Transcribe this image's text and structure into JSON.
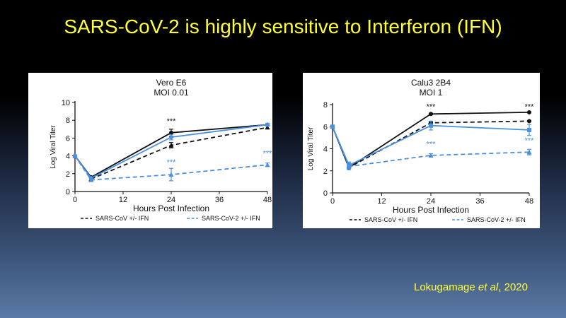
{
  "slide": {
    "title": "SARS-CoV-2 is highly sensitive to Interferon (IFN)",
    "citation": {
      "authors": "Lokugamage",
      "etal": "et al",
      "year": ", 2020"
    },
    "colors": {
      "title": "#ffff33",
      "black_series": "#111111",
      "blue_series": "#4a90e2"
    }
  },
  "chart_data": [
    {
      "type": "line",
      "title": "Vero E6",
      "subtitle": "MOI 0.01",
      "xlabel": "Hours Post Infection",
      "ylabel": "Log Viral Titer",
      "xlim": [
        0,
        48
      ],
      "ylim": [
        0,
        10
      ],
      "xticks": [
        0,
        12,
        24,
        36,
        48
      ],
      "yticks": [
        0,
        2,
        4,
        6,
        8,
        10
      ],
      "grid": false,
      "legend_position": "bottom",
      "legend": [
        "SARS-CoV +/- IFN",
        "SARS-CoV-2 +/- IFN"
      ],
      "series": [
        {
          "group": "SARS-CoV",
          "treated": false,
          "color": "#111111",
          "dashed": false,
          "marker": "circle",
          "x": [
            0,
            4,
            24,
            48
          ],
          "y": [
            4,
            1.6,
            6.6,
            7.5
          ],
          "err": [
            0,
            0,
            0.4,
            0.15
          ]
        },
        {
          "group": "SARS-CoV",
          "treated": true,
          "color": "#111111",
          "dashed": true,
          "marker": "triangle",
          "x": [
            0,
            4,
            24,
            48
          ],
          "y": [
            4,
            1.4,
            5.2,
            7.2
          ],
          "err": [
            0,
            0,
            0.3,
            0.15
          ]
        },
        {
          "group": "SARS-CoV-2",
          "treated": false,
          "color": "#4a90e2",
          "dashed": false,
          "marker": "circle",
          "x": [
            0,
            4,
            24,
            48
          ],
          "y": [
            4,
            1.5,
            6.1,
            7.5
          ],
          "err": [
            0,
            0,
            0.3,
            0.15
          ]
        },
        {
          "group": "SARS-CoV-2",
          "treated": true,
          "color": "#4a90e2",
          "dashed": true,
          "marker": "triangle",
          "x": [
            0,
            4,
            24,
            48
          ],
          "y": [
            4,
            1.3,
            1.9,
            3.0
          ],
          "err": [
            0,
            0,
            0.7,
            0.2
          ]
        }
      ],
      "annotations": [
        {
          "text": "***",
          "x": 24,
          "y": 7.6,
          "color": "#111111"
        },
        {
          "text": "***",
          "x": 24,
          "y": 3.0,
          "color": "#4a90e2"
        },
        {
          "text": "***",
          "x": 48,
          "y": 4.0,
          "color": "#4a90e2"
        }
      ]
    },
    {
      "type": "line",
      "title": "Calu3 2B4",
      "subtitle": "MOI 1",
      "xlabel": "Hours Post Infection",
      "ylabel": "Log Viral Titer",
      "xlim": [
        0,
        48
      ],
      "ylim": [
        0,
        8
      ],
      "xticks": [
        0,
        12,
        24,
        36,
        48
      ],
      "yticks": [
        0,
        2,
        4,
        6,
        8
      ],
      "grid": false,
      "legend_position": "bottom",
      "legend": [
        "SARS-CoV +/- IFN",
        "SARS-CoV-2 +/- IFN"
      ],
      "series": [
        {
          "group": "SARS-CoV",
          "treated": false,
          "color": "#111111",
          "dashed": false,
          "marker": "circle",
          "x": [
            0,
            4,
            24,
            48
          ],
          "y": [
            6,
            2.3,
            7.15,
            7.3
          ],
          "err": [
            0,
            0,
            0.05,
            0.05
          ]
        },
        {
          "group": "SARS-CoV",
          "treated": true,
          "color": "#111111",
          "dashed": true,
          "marker": "circle",
          "x": [
            0,
            4,
            24,
            48
          ],
          "y": [
            6,
            2.3,
            6.35,
            6.5
          ],
          "err": [
            0,
            0,
            0.05,
            0.05
          ]
        },
        {
          "group": "SARS-CoV-2",
          "treated": false,
          "color": "#4a90e2",
          "dashed": false,
          "marker": "square",
          "x": [
            0,
            4,
            24,
            48
          ],
          "y": [
            6,
            2.5,
            6.1,
            5.7
          ],
          "err": [
            0,
            0.3,
            0.4,
            0.5
          ]
        },
        {
          "group": "SARS-CoV-2",
          "treated": true,
          "color": "#4a90e2",
          "dashed": true,
          "marker": "triangle",
          "x": [
            0,
            4,
            24,
            48
          ],
          "y": [
            6,
            2.4,
            3.4,
            3.7
          ],
          "err": [
            0,
            0.3,
            0.15,
            0.25
          ]
        }
      ],
      "annotations": [
        {
          "text": "***",
          "x": 24,
          "y": 7.6,
          "color": "#111111"
        },
        {
          "text": "***",
          "x": 48,
          "y": 7.6,
          "color": "#111111"
        },
        {
          "text": "***",
          "x": 24,
          "y": 4.2,
          "color": "#4a90e2"
        },
        {
          "text": "***",
          "x": 48,
          "y": 4.5,
          "color": "#4a90e2"
        }
      ]
    }
  ]
}
